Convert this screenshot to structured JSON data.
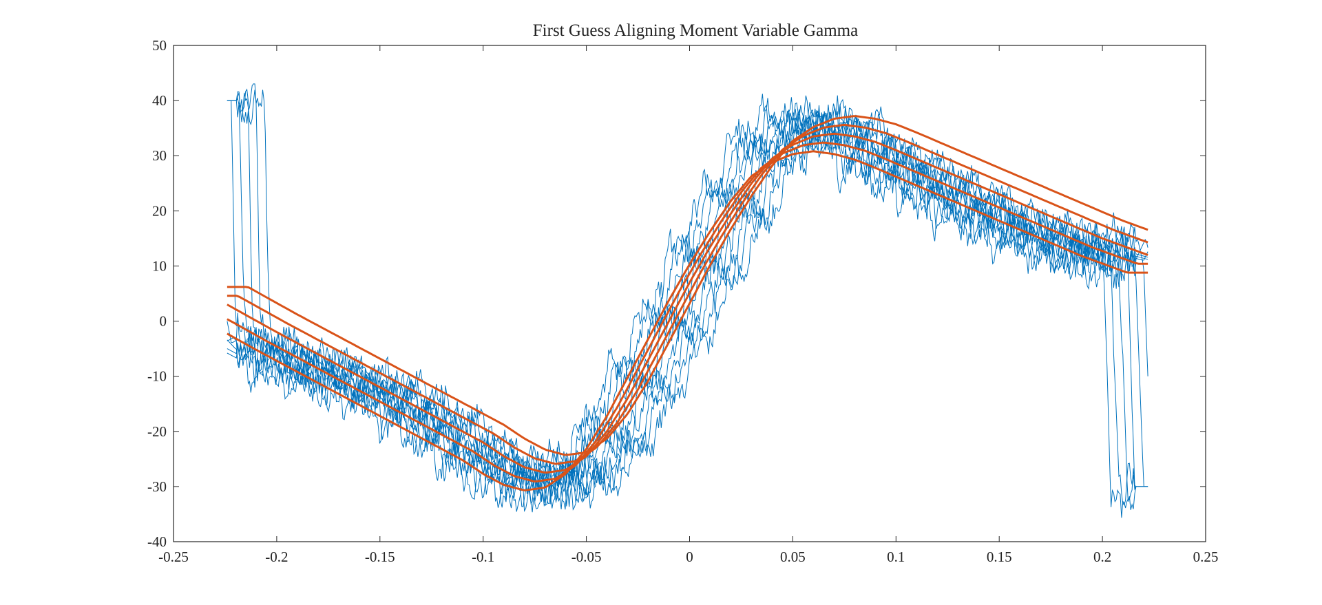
{
  "chart_data": {
    "type": "line",
    "title": "First Guess Aligning Moment Variable Gamma",
    "xlabel": "",
    "ylabel": "",
    "xlim": [
      -0.25,
      0.25
    ],
    "ylim": [
      -40,
      50
    ],
    "x_ticks": [
      -0.25,
      -0.2,
      -0.15,
      -0.1,
      -0.05,
      0,
      0.05,
      0.1,
      0.15,
      0.2,
      0.25
    ],
    "x_tick_labels": [
      "-0.25",
      "-0.2",
      "-0.15",
      "-0.1",
      "-0.05",
      "0",
      "0.05",
      "0.1",
      "0.15",
      "0.2",
      "0.25"
    ],
    "y_ticks": [
      -40,
      -30,
      -20,
      -10,
      0,
      10,
      20,
      30,
      40,
      50
    ],
    "y_tick_labels": [
      "-40",
      "-30",
      "-20",
      "-10",
      "0",
      "10",
      "20",
      "30",
      "40",
      "50"
    ],
    "grid": false,
    "legend": "none",
    "colors": {
      "measured": "#0072BD",
      "fit": "#D95319",
      "axis": "#262626"
    },
    "series": [
      {
        "role": "measured",
        "style": "thin-noisy",
        "traces": 10,
        "x": [
          -0.224,
          -0.222,
          -0.22,
          -0.215,
          -0.21,
          -0.2,
          -0.19,
          -0.18,
          -0.17,
          -0.16,
          -0.15,
          -0.14,
          -0.13,
          -0.12,
          -0.11,
          -0.1,
          -0.09,
          -0.08,
          -0.07,
          -0.06,
          -0.05,
          -0.04,
          -0.03,
          -0.02,
          -0.01,
          0,
          0.01,
          0.02,
          0.03,
          0.04,
          0.05,
          0.06,
          0.07,
          0.08,
          0.09,
          0.1,
          0.11,
          0.12,
          0.13,
          0.14,
          0.15,
          0.16,
          0.17,
          0.18,
          0.19,
          0.2,
          0.21,
          0.215,
          0.218,
          0.22,
          0.222
        ],
        "y": [
          40,
          0,
          -4,
          -3,
          -5,
          -7,
          -8,
          -9,
          -10,
          -12,
          -13,
          -15,
          -17,
          -19,
          -22,
          -25,
          -27,
          -29,
          -30,
          -29,
          -27,
          -23,
          -17,
          -10,
          -3,
          4,
          12,
          19,
          26,
          32,
          35,
          36,
          35,
          33,
          30,
          28,
          26,
          24,
          22,
          20,
          18,
          17,
          15,
          14,
          13,
          12,
          11,
          15,
          10,
          -10,
          -30
        ]
      },
      {
        "role": "fit",
        "style": "thick-smooth",
        "gamma_offsets": [
          -2,
          -1,
          0,
          1,
          2
        ],
        "x": [
          -0.224,
          -0.2,
          -0.175,
          -0.15,
          -0.125,
          -0.1,
          -0.09,
          -0.08,
          -0.07,
          -0.06,
          -0.05,
          -0.04,
          -0.03,
          -0.02,
          -0.01,
          0,
          0.01,
          0.02,
          0.03,
          0.04,
          0.05,
          0.06,
          0.07,
          0.08,
          0.09,
          0.1,
          0.125,
          0.15,
          0.175,
          0.2,
          0.222
        ],
        "y": [
          3,
          -2,
          -7,
          -12,
          -17,
          -22,
          -24.5,
          -26.5,
          -27.5,
          -27,
          -24.5,
          -20,
          -14,
          -7,
          0,
          7,
          13.5,
          19.5,
          25,
          29.5,
          32,
          33.5,
          34,
          33.5,
          32.5,
          31,
          27,
          23,
          19,
          15,
          12
        ]
      }
    ]
  }
}
